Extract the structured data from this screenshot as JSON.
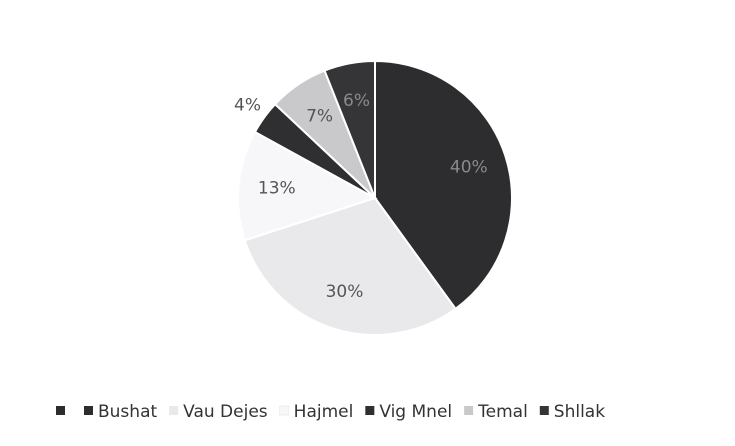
{
  "chart_data": {
    "type": "pie",
    "categories": [
      "Bushat",
      "Vau Dejes",
      "Hajmel",
      "Vig Mnel",
      "Temal",
      "Shllak"
    ],
    "values": [
      40,
      30,
      13,
      4,
      7,
      6
    ],
    "value_labels": [
      "40%",
      "30%",
      "13%",
      "4%",
      "7%",
      "6%"
    ],
    "colors": [
      "#2d2d2f",
      "#e9e9ec",
      "#f7f7f9",
      "#2f2f31",
      "#c9c9cb",
      "#353537"
    ],
    "legend": "bottom"
  }
}
